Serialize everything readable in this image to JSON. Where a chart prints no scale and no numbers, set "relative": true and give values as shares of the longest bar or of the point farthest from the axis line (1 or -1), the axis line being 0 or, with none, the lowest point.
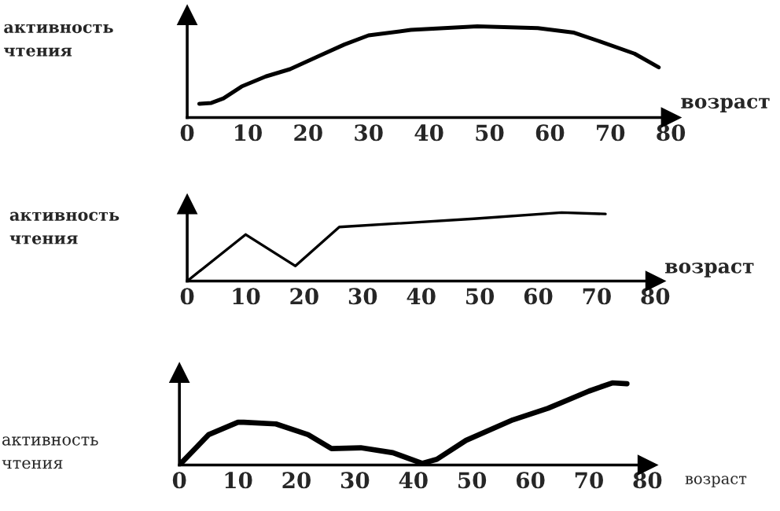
{
  "chart_data": [
    {
      "type": "line",
      "relative": true,
      "ylabel": "активность\nчтения",
      "xlabel": "возраст",
      "xlim": [
        0,
        80
      ],
      "xticks": [
        0,
        10,
        20,
        30,
        40,
        50,
        60,
        70,
        80
      ],
      "tick_labels": "x",
      "grid": false,
      "series": [
        {
          "color": "#000000",
          "x": [
            2,
            4,
            6,
            9,
            13,
            17,
            22,
            26,
            30,
            37,
            48,
            58,
            64,
            68,
            74,
            78
          ],
          "values": [
            0.15,
            0.16,
            0.21,
            0.34,
            0.45,
            0.53,
            0.68,
            0.8,
            0.9,
            0.96,
            1.0,
            0.98,
            0.93,
            0.84,
            0.7,
            0.55
          ]
        }
      ]
    },
    {
      "type": "line",
      "relative": true,
      "ylabel": "активность\nчтения",
      "xlabel": "возраст",
      "xlim": [
        0,
        80
      ],
      "xticks": [
        0,
        10,
        20,
        30,
        40,
        50,
        60,
        70,
        80
      ],
      "tick_labels": "x",
      "grid": false,
      "series": [
        {
          "color": "#000000",
          "x": [
            0,
            10,
            18.5,
            26,
            49,
            64,
            71.5
          ],
          "values": [
            0,
            0.68,
            0.22,
            0.79,
            0.91,
            1.0,
            0.98
          ]
        }
      ]
    },
    {
      "type": "line",
      "relative": true,
      "ylabel": "активность\nчтения",
      "xlabel": "возраст",
      "xlim": [
        0,
        80
      ],
      "xticks": [
        0,
        10,
        20,
        30,
        40,
        50,
        60,
        70,
        80
      ],
      "tick_labels": "x",
      "grid": false,
      "series": [
        {
          "color": "#000000",
          "x": [
            0,
            5,
            10,
            11,
            16.5,
            22,
            26,
            31,
            36.5,
            41.5,
            44,
            49,
            57,
            63,
            70,
            74,
            76.5
          ],
          "values": [
            0,
            0.37,
            0.52,
            0.52,
            0.5,
            0.37,
            0.2,
            0.21,
            0.15,
            0.02,
            0.07,
            0.3,
            0.55,
            0.69,
            0.9,
            1.0,
            0.99
          ]
        }
      ]
    }
  ]
}
